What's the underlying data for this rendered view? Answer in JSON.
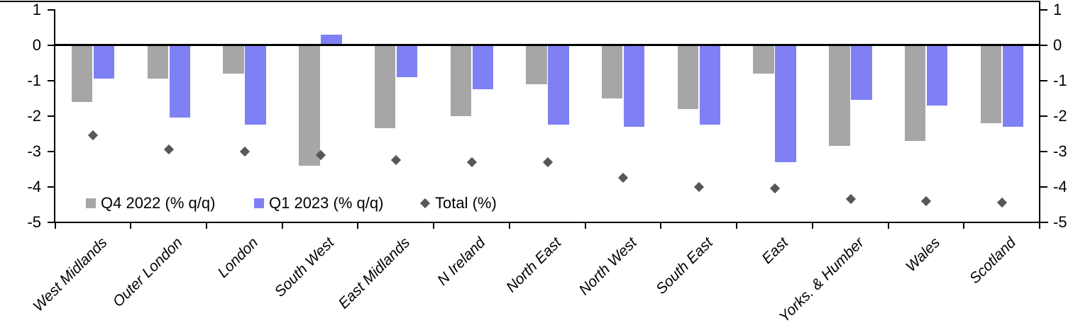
{
  "chart_data": {
    "type": "bar",
    "subtype": "grouped bars with diamond scatter overlay, dual y-axis",
    "title": "",
    "xlabel": "",
    "ylabel": "",
    "categories": [
      "West Midlands",
      "Outer London",
      "London",
      "South West",
      "East Midlands",
      "N Ireland",
      "North East",
      "North West",
      "South East",
      "East",
      "Yorks. & Humber",
      "Wales",
      "Scotland"
    ],
    "series": [
      {
        "name": "Q4 2022 (% q/q)",
        "type": "bar",
        "color": "#a6a6a6",
        "values": [
          -1.6,
          -0.95,
          -0.8,
          -3.4,
          -2.35,
          -2.0,
          -1.1,
          -1.5,
          -1.8,
          -0.8,
          -2.85,
          -2.7,
          -2.2
        ]
      },
      {
        "name": "Q1 2023 (% q/q)",
        "type": "bar",
        "color": "#8080f5",
        "values": [
          -0.95,
          -2.05,
          -2.25,
          0.3,
          -0.9,
          -1.25,
          -2.25,
          -2.3,
          -2.25,
          -3.3,
          -1.55,
          -1.7,
          -2.3
        ]
      },
      {
        "name": "Total (%)",
        "type": "scatter",
        "marker": "diamond",
        "color": "#575757",
        "values": [
          -2.55,
          -2.95,
          -3.0,
          -3.1,
          -3.25,
          -3.3,
          -3.3,
          -3.75,
          -4.0,
          -4.05,
          -4.35,
          -4.4,
          -4.45
        ]
      }
    ],
    "y_axis": {
      "min": -5,
      "max": 1,
      "tick_labels": [
        "1",
        "0",
        "-1",
        "-2",
        "-3",
        "-4",
        "-5"
      ],
      "tick_values": [
        1,
        0,
        -1,
        -2,
        -3,
        -4,
        -5
      ],
      "mirrored_right_axis": true
    },
    "x_axis": {
      "label_rotation_deg": -45,
      "label_style": "italic"
    },
    "grid": false,
    "legend_position": "inside-bottom-left",
    "axis_color": "#000000",
    "background_color": "#ffffff"
  }
}
